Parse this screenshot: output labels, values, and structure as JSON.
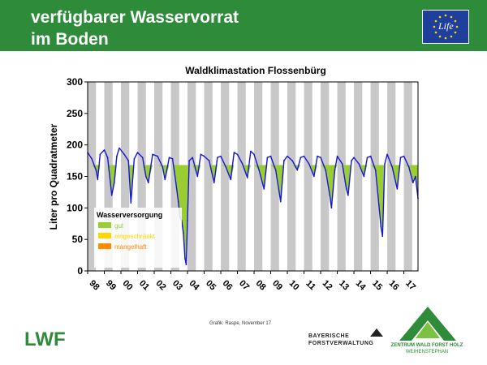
{
  "header": {
    "title_line1": "verfügbarer Wasservorrat",
    "title_line2": "im Boden",
    "eu_logo_text": "Life"
  },
  "colors": {
    "header_green": "#2e8b3a",
    "series_blue": "#1515d8",
    "stripe_gray": "#c8c8c8",
    "gut": "#9acd32",
    "eingeschraenkt": "#ffd700",
    "mangelhaft": "#ff8c00"
  },
  "chart_data": {
    "type": "line",
    "title": "Waldklimastation Flossenbürg",
    "ylabel": "Liter pro Quadratmeter",
    "xlabel": "",
    "ylim": [
      0,
      300
    ],
    "yticks": [
      0,
      50,
      100,
      150,
      200,
      250,
      300
    ],
    "xlim": [
      1998.0,
      2017.85
    ],
    "categories": [
      "98",
      "99",
      "00",
      "01",
      "02",
      "03",
      "04",
      "05",
      "06",
      "07",
      "08",
      "09",
      "10",
      "11",
      "12",
      "13",
      "14",
      "15",
      "16",
      "17"
    ],
    "grid": false,
    "background": "alternating gray vertical stripes per half-year",
    "reference_level": 168,
    "legend": {
      "title": "Wasserversorgung",
      "placement": "bottom-left",
      "entries": [
        {
          "label": "gut",
          "color": "#9acd32"
        },
        {
          "label": "eingeschränkt",
          "color": "#ffd700"
        },
        {
          "label": "mangelhaft",
          "color": "#ff8c00"
        }
      ]
    },
    "series": [
      {
        "x": [
          1998.0,
          1998.25,
          1998.5,
          1998.6,
          1998.75,
          1999.0,
          1999.2,
          1999.45,
          1999.6,
          1999.75,
          1999.9,
          2000.2,
          2000.45,
          2000.6,
          2000.8,
          2001.0,
          2001.3,
          2001.5,
          2001.65,
          2001.9,
          2002.2,
          2002.5,
          2002.65,
          2002.9,
          2003.1,
          2003.3,
          2003.45,
          2003.55,
          2003.65,
          2003.75,
          2003.85,
          2003.92,
          2004.0,
          2004.1,
          2004.3,
          2004.6,
          2004.8,
          2005.0,
          2005.3,
          2005.6,
          2005.8,
          2006.0,
          2006.3,
          2006.6,
          2006.8,
          2007.0,
          2007.3,
          2007.6,
          2007.8,
          2008.0,
          2008.3,
          2008.6,
          2008.8,
          2009.0,
          2009.3,
          2009.6,
          2009.8,
          2010.0,
          2010.3,
          2010.6,
          2010.8,
          2011.0,
          2011.3,
          2011.6,
          2011.8,
          2012.0,
          2012.3,
          2012.55,
          2012.65,
          2012.85,
          2013.0,
          2013.3,
          2013.55,
          2013.65,
          2013.85,
          2014.0,
          2014.3,
          2014.6,
          2014.8,
          2015.0,
          2015.3,
          2015.5,
          2015.62,
          2015.72,
          2015.85,
          2016.0,
          2016.3,
          2016.6,
          2016.8,
          2017.0,
          2017.3,
          2017.55,
          2017.7,
          2017.85
        ],
        "values": [
          188,
          178,
          160,
          145,
          185,
          192,
          180,
          120,
          140,
          182,
          195,
          185,
          175,
          108,
          178,
          188,
          180,
          150,
          140,
          185,
          182,
          165,
          145,
          180,
          178,
          140,
          110,
          85,
          80,
          60,
          20,
          10,
          80,
          175,
          180,
          150,
          185,
          182,
          175,
          140,
          180,
          182,
          165,
          145,
          188,
          185,
          170,
          148,
          190,
          185,
          160,
          130,
          180,
          182,
          160,
          110,
          175,
          182,
          175,
          160,
          180,
          182,
          170,
          150,
          182,
          180,
          160,
          120,
          100,
          160,
          182,
          170,
          130,
          120,
          175,
          180,
          170,
          150,
          180,
          182,
          160,
          105,
          70,
          55,
          170,
          185,
          165,
          130,
          180,
          182,
          165,
          140,
          150,
          115
        ]
      }
    ]
  },
  "footer": {
    "credit": "Grafik: Raspe, November 17",
    "lwf": "LWF",
    "bay_line1": "BAYERISCHE",
    "bay_line2": "FORSTVERWALTUNG",
    "zentrum_line1": "ZENTRUM WALD FORST HOLZ",
    "zentrum_line2": "WEIHENSTEPHAN"
  }
}
